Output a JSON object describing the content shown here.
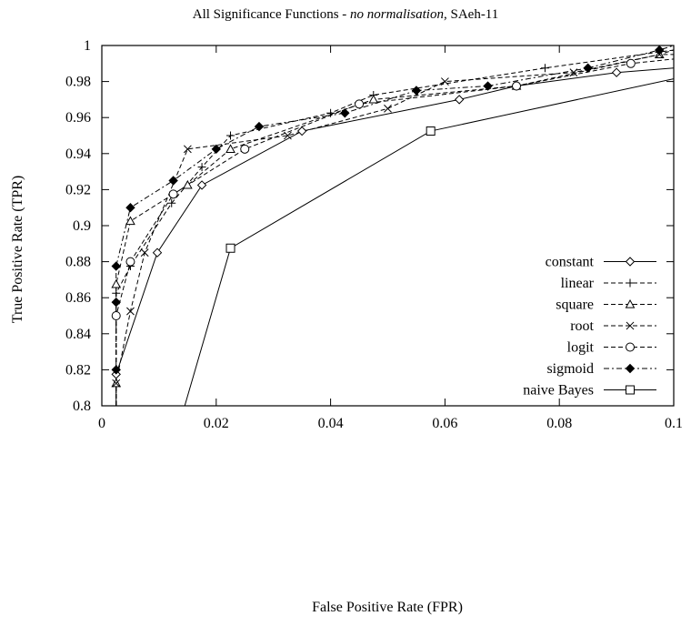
{
  "chart_data": {
    "type": "line",
    "title_prefix": "All Significance Functions - ",
    "title_italic": "no normalisation",
    "title_suffix": ", SAeh-11",
    "xlabel": "False Positive Rate (FPR)",
    "ylabel": "True Positive Rate (TPR)",
    "xlim": [
      0,
      0.1
    ],
    "ylim": [
      0.8,
      1.0
    ],
    "xticks": [
      0,
      0.02,
      0.04,
      0.06,
      0.08,
      0.1
    ],
    "xtick_labels": [
      "0",
      "0.02",
      "0.04",
      "0.06",
      "0.08",
      "0.1"
    ],
    "yticks": [
      0.8,
      0.82,
      0.84,
      0.86,
      0.88,
      0.9,
      0.92,
      0.94,
      0.96,
      0.98,
      1.0
    ],
    "ytick_labels": [
      "0.8",
      "0.82",
      "0.84",
      "0.86",
      "0.88",
      "0.9",
      "0.92",
      "0.94",
      "0.96",
      "0.98",
      "1"
    ],
    "grid": false,
    "legend_position": "bottom-right",
    "series": [
      {
        "name": "constant",
        "marker": "diamond-open",
        "dash": "solid",
        "points": [
          [
            0.0025,
            0.8
          ],
          [
            0.0025,
            0.8175
          ],
          [
            0.0097,
            0.885
          ],
          [
            0.0175,
            0.9225
          ],
          [
            0.035,
            0.9525
          ],
          [
            0.0625,
            0.97
          ],
          [
            0.0725,
            0.9775
          ],
          [
            0.09,
            0.985
          ],
          [
            0.1,
            0.9875
          ]
        ]
      },
      {
        "name": "linear",
        "marker": "plus",
        "dash": "dashed",
        "points": [
          [
            0.0025,
            0.8
          ],
          [
            0.0025,
            0.8625
          ],
          [
            0.005,
            0.8775
          ],
          [
            0.0122,
            0.9125
          ],
          [
            0.0175,
            0.9325
          ],
          [
            0.0225,
            0.95
          ],
          [
            0.04,
            0.9625
          ],
          [
            0.0475,
            0.9725
          ],
          [
            0.0775,
            0.9875
          ],
          [
            0.1,
            0.9975
          ]
        ]
      },
      {
        "name": "square",
        "marker": "triangle-open",
        "dash": "dashed",
        "points": [
          [
            0.0025,
            0.8
          ],
          [
            0.0025,
            0.8125
          ],
          [
            0.0025,
            0.8675
          ],
          [
            0.005,
            0.9025
          ],
          [
            0.015,
            0.9225
          ],
          [
            0.0225,
            0.9425
          ],
          [
            0.0475,
            0.97
          ],
          [
            0.0725,
            0.9775
          ],
          [
            0.0975,
            0.995
          ],
          [
            0.1,
            0.9975
          ]
        ]
      },
      {
        "name": "root",
        "marker": "cross",
        "dash": "dashed",
        "points": [
          [
            0.0025,
            0.8
          ],
          [
            0.0025,
            0.8125
          ],
          [
            0.005,
            0.8525
          ],
          [
            0.0075,
            0.885
          ],
          [
            0.015,
            0.9425
          ],
          [
            0.0325,
            0.95
          ],
          [
            0.05,
            0.965
          ],
          [
            0.06,
            0.98
          ],
          [
            0.0825,
            0.985
          ],
          [
            0.0975,
            0.995
          ],
          [
            0.1,
            0.995
          ]
        ]
      },
      {
        "name": "logit",
        "marker": "circle-open",
        "dash": "dashed",
        "points": [
          [
            0.0025,
            0.8
          ],
          [
            0.0025,
            0.85
          ],
          [
            0.005,
            0.88
          ],
          [
            0.0125,
            0.9175
          ],
          [
            0.025,
            0.9425
          ],
          [
            0.045,
            0.9675
          ],
          [
            0.0725,
            0.9775
          ],
          [
            0.0925,
            0.99
          ],
          [
            0.1,
            0.9925
          ]
        ]
      },
      {
        "name": "sigmoid",
        "marker": "diamond-filled",
        "dash": "dashdot",
        "points": [
          [
            0.0025,
            0.8
          ],
          [
            0.0025,
            0.82
          ],
          [
            0.0025,
            0.8575
          ],
          [
            0.0025,
            0.8775
          ],
          [
            0.005,
            0.91
          ],
          [
            0.0125,
            0.925
          ],
          [
            0.02,
            0.9425
          ],
          [
            0.0275,
            0.955
          ],
          [
            0.0425,
            0.9625
          ],
          [
            0.055,
            0.975
          ],
          [
            0.0675,
            0.9775
          ],
          [
            0.085,
            0.9875
          ],
          [
            0.0975,
            0.9975
          ],
          [
            0.1,
            1.0
          ]
        ]
      },
      {
        "name": "naive Bayes",
        "marker": "square-open",
        "dash": "solid",
        "points": [
          [
            0.0145,
            0.8
          ],
          [
            0.0225,
            0.8875
          ],
          [
            0.0575,
            0.9525
          ],
          [
            0.1,
            0.9815
          ]
        ]
      }
    ]
  },
  "markers": {
    "constant": [
      [
        0.0025,
        0.8175
      ],
      [
        0.0097,
        0.885
      ],
      [
        0.0175,
        0.9225
      ],
      [
        0.035,
        0.9525
      ],
      [
        0.0625,
        0.97
      ],
      [
        0.0725,
        0.9775
      ],
      [
        0.09,
        0.985
      ]
    ],
    "linear": [
      [
        0.0025,
        0.8625
      ],
      [
        0.005,
        0.8775
      ],
      [
        0.0122,
        0.9125
      ],
      [
        0.0175,
        0.9325
      ],
      [
        0.0225,
        0.95
      ],
      [
        0.04,
        0.9625
      ],
      [
        0.0475,
        0.9725
      ],
      [
        0.0775,
        0.9875
      ]
    ],
    "square": [
      [
        0.0025,
        0.8125
      ],
      [
        0.0025,
        0.8675
      ],
      [
        0.005,
        0.9025
      ],
      [
        0.015,
        0.9225
      ],
      [
        0.0225,
        0.9425
      ],
      [
        0.0475,
        0.97
      ],
      [
        0.0725,
        0.9775
      ],
      [
        0.0975,
        0.995
      ]
    ],
    "root": [
      [
        0.0025,
        0.8125
      ],
      [
        0.005,
        0.8525
      ],
      [
        0.0075,
        0.885
      ],
      [
        0.015,
        0.9425
      ],
      [
        0.0325,
        0.95
      ],
      [
        0.05,
        0.965
      ],
      [
        0.06,
        0.98
      ],
      [
        0.0825,
        0.985
      ],
      [
        0.0975,
        0.995
      ]
    ],
    "logit": [
      [
        0.0025,
        0.85
      ],
      [
        0.005,
        0.88
      ],
      [
        0.0125,
        0.9175
      ],
      [
        0.025,
        0.9425
      ],
      [
        0.045,
        0.9675
      ],
      [
        0.0725,
        0.9775
      ],
      [
        0.0925,
        0.99
      ]
    ],
    "sigmoid": [
      [
        0.0025,
        0.82
      ],
      [
        0.0025,
        0.8575
      ],
      [
        0.0025,
        0.8775
      ],
      [
        0.005,
        0.91
      ],
      [
        0.0125,
        0.925
      ],
      [
        0.02,
        0.9425
      ],
      [
        0.0275,
        0.955
      ],
      [
        0.0425,
        0.9625
      ],
      [
        0.055,
        0.975
      ],
      [
        0.0675,
        0.9775
      ],
      [
        0.085,
        0.9875
      ],
      [
        0.0975,
        0.9975
      ]
    ],
    "naive Bayes": [
      [
        0.0225,
        0.8875
      ],
      [
        0.0575,
        0.9525
      ]
    ]
  }
}
